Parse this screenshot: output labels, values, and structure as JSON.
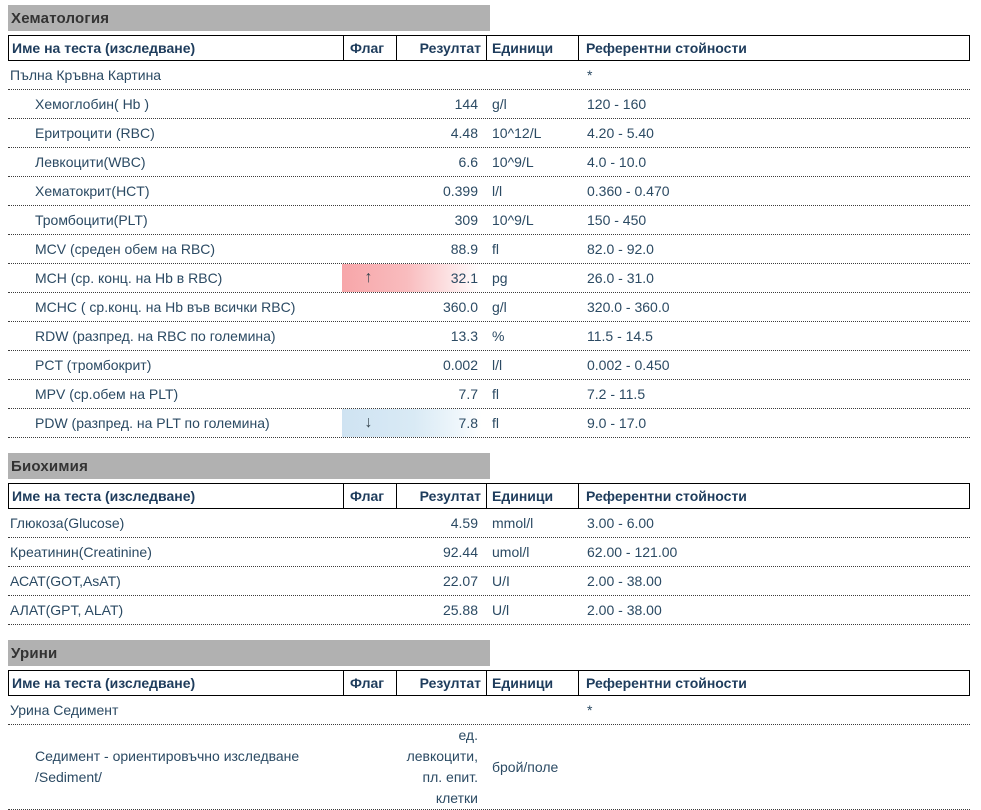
{
  "columns": {
    "name": "Име на теста (изследване)",
    "flag": "Флаг",
    "result": "Резултат",
    "units": "Единици",
    "reference": "Референтни стойности"
  },
  "colors": {
    "section_bar": "#b1b1b1",
    "text": "#2b4a63",
    "flag_high": "#f7a6a9",
    "flag_low": "#cfe3f2"
  },
  "sections": [
    {
      "title": "Хематология",
      "rows": [
        {
          "name": "Пълна Кръвна Картина",
          "flag": "",
          "result": "",
          "units": "",
          "reference": "*",
          "indent": false
        },
        {
          "name": "Хемоглобин( Hb )",
          "flag": "",
          "result": "144",
          "units": "g/l",
          "reference": "120 - 160",
          "indent": true
        },
        {
          "name": "Еритроцити (RBC)",
          "flag": "",
          "result": "4.48",
          "units": "10^12/L",
          "reference": "4.20 - 5.40",
          "indent": true
        },
        {
          "name": "Левкоцити(WBC)",
          "flag": "",
          "result": "6.6",
          "units": "10^9/L",
          "reference": "4.0 - 10.0",
          "indent": true
        },
        {
          "name": "Хематокрит(HCT)",
          "flag": "",
          "result": "0.399",
          "units": "l/l",
          "reference": "0.360 - 0.470",
          "indent": true
        },
        {
          "name": "Тромбоцити(PLT)",
          "flag": "",
          "result": "309",
          "units": "10^9/L",
          "reference": "150 - 450",
          "indent": true
        },
        {
          "name": "MCV (среден обем на RBC)",
          "flag": "",
          "result": "88.9",
          "units": "fl",
          "reference": "82.0 - 92.0",
          "indent": true
        },
        {
          "name": "MCH (ср. конц. на Hb в RBC)",
          "flag": "↑",
          "flag_type": "high",
          "result": "32.1",
          "units": "pg",
          "reference": "26.0 - 31.0",
          "indent": true
        },
        {
          "name": "MCHC ( ср.конц. на Hb във всички RBC)",
          "flag": "",
          "result": "360.0",
          "units": "g/l",
          "reference": "320.0 - 360.0",
          "indent": true
        },
        {
          "name": "RDW (разпред. на RBC по големина)",
          "flag": "",
          "result": "13.3",
          "units": "%",
          "reference": "11.5 - 14.5",
          "indent": true
        },
        {
          "name": "PCT (тромбокрит)",
          "flag": "",
          "result": "0.002",
          "units": "l/l",
          "reference": "0.002 - 0.450",
          "indent": true
        },
        {
          "name": "MPV (ср.обем на PLT)",
          "flag": "",
          "result": "7.7",
          "units": "fl",
          "reference": "7.2 - 11.5",
          "indent": true
        },
        {
          "name": "PDW (разпред. на PLT по големина)",
          "flag": "↓",
          "flag_type": "low",
          "result": "7.8",
          "units": "fl",
          "reference": "9.0 - 17.0",
          "indent": true
        }
      ]
    },
    {
      "title": "Биохимия",
      "rows": [
        {
          "name": "Глюкоза(Glucose)",
          "flag": "",
          "result": "4.59",
          "units": "mmol/l",
          "reference": "3.00 - 6.00",
          "indent": false
        },
        {
          "name": "Креатинин(Creatinine)",
          "flag": "",
          "result": "92.44",
          "units": "umol/l",
          "reference": "62.00 - 121.00",
          "indent": false
        },
        {
          "name": "АСАТ(GOT,AsAT)",
          "flag": "",
          "result": "22.07",
          "units": "U/I",
          "reference": "2.00 - 38.00",
          "indent": false
        },
        {
          "name": "АЛАТ(GPT, ALAT)",
          "flag": "",
          "result": "25.88",
          "units": "U/l",
          "reference": "2.00 - 38.00",
          "indent": false
        }
      ]
    },
    {
      "title": "Урини",
      "rows": [
        {
          "name": "Урина Седимент",
          "flag": "",
          "result": "",
          "units": "",
          "reference": "*",
          "indent": false
        },
        {
          "name": "Седимент - ориентировъчно изследване /Sediment/",
          "flag": "",
          "result": "ед. левкоцити, пл. епит. клетки",
          "units": "брой/поле",
          "reference": "",
          "indent": true,
          "tall": true
        }
      ]
    }
  ]
}
